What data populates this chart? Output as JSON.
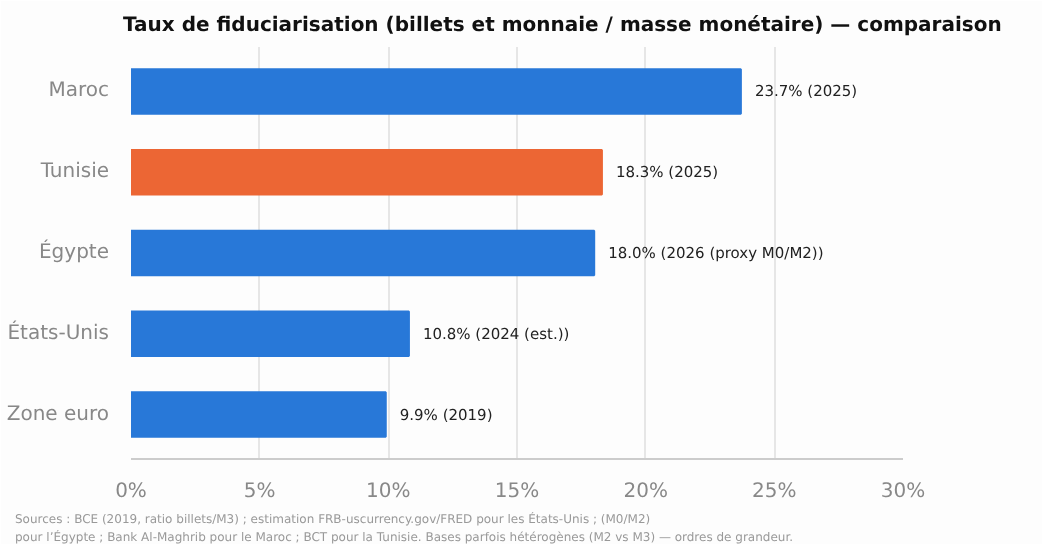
{
  "chart_data": {
    "type": "bar",
    "orientation": "horizontal",
    "title": "Taux de fiduciarisation (billets et monnaie / masse monétaire) — comparaison",
    "categories": [
      "Maroc",
      "Tunisie",
      "Égypte",
      "États-Unis",
      "Zone euro"
    ],
    "values": [
      23.7,
      18.3,
      18.0,
      10.8,
      9.9
    ],
    "colors": [
      "#2878d8",
      "#ec6634",
      "#2878d8",
      "#2878d8",
      "#2878d8"
    ],
    "value_labels": [
      "23.7%  (2025)",
      "18.3%  (2025)",
      "18.0%  (2026 (proxy M0/M2))",
      "10.8%  (2024 (est.))",
      "9.9%  (2019)"
    ],
    "xlim": [
      0,
      30
    ],
    "xticks": [
      {
        "value": 0,
        "label": "0%"
      },
      {
        "value": 5,
        "label": "5%"
      },
      {
        "value": 10,
        "label": "10%"
      },
      {
        "value": 15,
        "label": "15%"
      },
      {
        "value": 20,
        "label": "20%"
      },
      {
        "value": 25,
        "label": "25%"
      },
      {
        "value": 30,
        "label": "30%"
      }
    ],
    "grid": "x",
    "annotations": [
      "Sources : BCE (2019, ratio billets/M3) ; estimation FRB-uscurrency.gov/FRED pour les États-Unis ; (M0/M2)",
      "pour l’Égypte ; Bank Al-Maghrib pour le Maroc ; BCT pour la Tunisie. Bases parfois hétérogènes (M2 vs M3) — ordres de grandeur."
    ]
  }
}
